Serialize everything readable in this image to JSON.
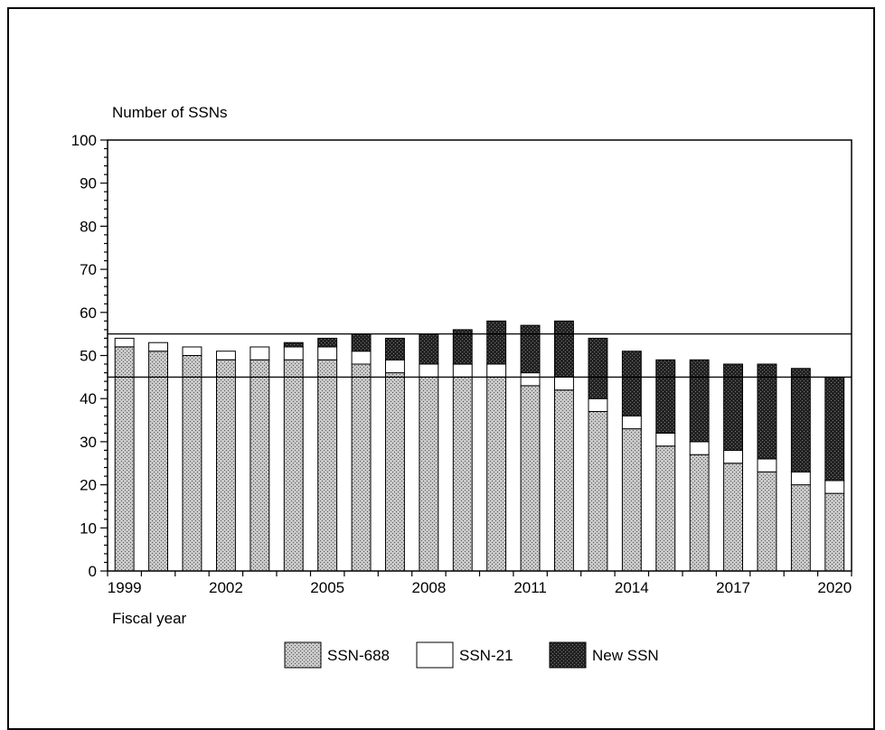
{
  "chart_data": {
    "type": "bar",
    "stacked": true,
    "ylabel": "Number of SSNs",
    "xlabel": "Fiscal year",
    "ylim": [
      0,
      100
    ],
    "yticks": [
      0,
      10,
      20,
      30,
      40,
      50,
      60,
      70,
      80,
      90,
      100
    ],
    "xtick_labels": [
      "1999",
      "2002",
      "2005",
      "2008",
      "2011",
      "2014",
      "2017",
      "2020"
    ],
    "categories": [
      "1999",
      "2000",
      "2001",
      "2002",
      "2003",
      "2004",
      "2005",
      "2006",
      "2007",
      "2008",
      "2009",
      "2010",
      "2011",
      "2012",
      "2013",
      "2014",
      "2015",
      "2016",
      "2017",
      "2018",
      "2019",
      "2020"
    ],
    "series": [
      {
        "name": "SSN-688",
        "values": [
          52,
          51,
          50,
          49,
          49,
          49,
          49,
          48,
          46,
          45,
          45,
          45,
          43,
          42,
          37,
          33,
          29,
          27,
          25,
          23,
          20,
          18
        ]
      },
      {
        "name": "SSN-21",
        "values": [
          2,
          2,
          2,
          2,
          3,
          3,
          3,
          3,
          3,
          3,
          3,
          3,
          3,
          3,
          3,
          3,
          3,
          3,
          3,
          3,
          3,
          3
        ]
      },
      {
        "name": "New SSN",
        "values": [
          0,
          0,
          0,
          0,
          0,
          1,
          2,
          4,
          5,
          7,
          8,
          10,
          11,
          13,
          14,
          15,
          17,
          19,
          20,
          22,
          24,
          24
        ]
      }
    ],
    "reference_lines": [
      45,
      55
    ],
    "legend_position": "bottom-center",
    "colors": {
      "ssn688": "#b5b5b5",
      "ssn21": "#ffffff",
      "newssn": "#2a2a2a"
    }
  }
}
